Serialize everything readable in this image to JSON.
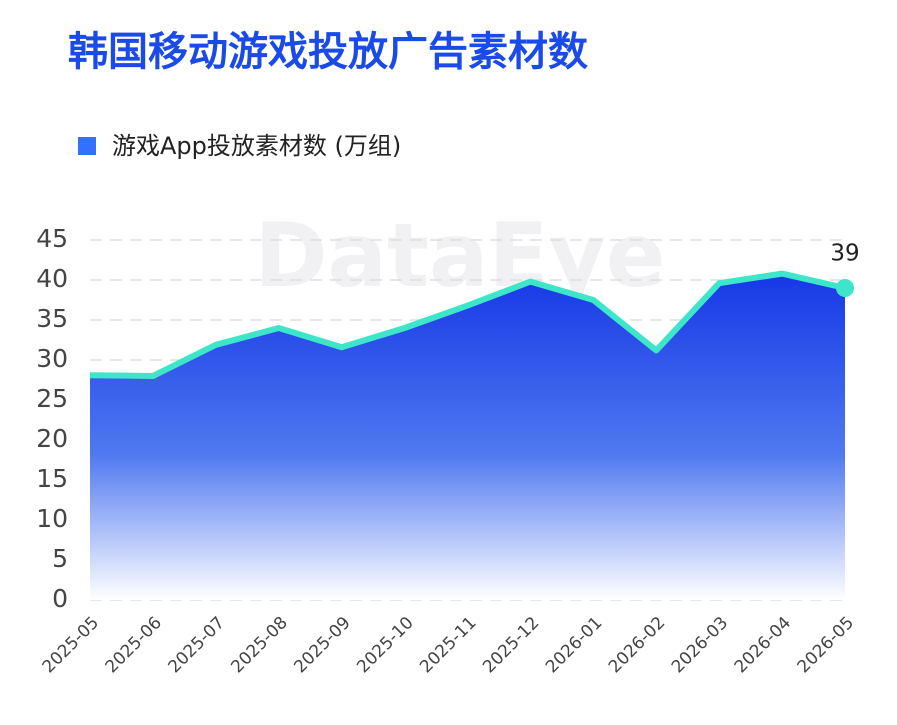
{
  "chart_data": {
    "type": "area",
    "title": "韩国移动游戏投放广告素材数",
    "watermark": "DataEye",
    "categories": [
      "2025-05",
      "2025-06",
      "2025-07",
      "2025-08",
      "2025-09",
      "2025-10",
      "2025-11",
      "2025-12",
      "2026-01",
      "2026-02",
      "2026-03",
      "2026-04",
      "2026-05"
    ],
    "series": [
      {
        "name": "游戏App投放素材数 (万组)",
        "color": "#3de6c8",
        "fill": "#1638e6",
        "values": [
          28.1,
          28,
          31.9,
          34,
          31.6,
          34,
          36.8,
          39.8,
          37.5,
          31.2,
          39.6,
          40.8,
          39
        ]
      }
    ],
    "ylim": [
      0,
      45
    ],
    "yticks": [
      0,
      5,
      10,
      15,
      20,
      25,
      30,
      35,
      40,
      45
    ],
    "grid": true,
    "legend": "top-left"
  }
}
